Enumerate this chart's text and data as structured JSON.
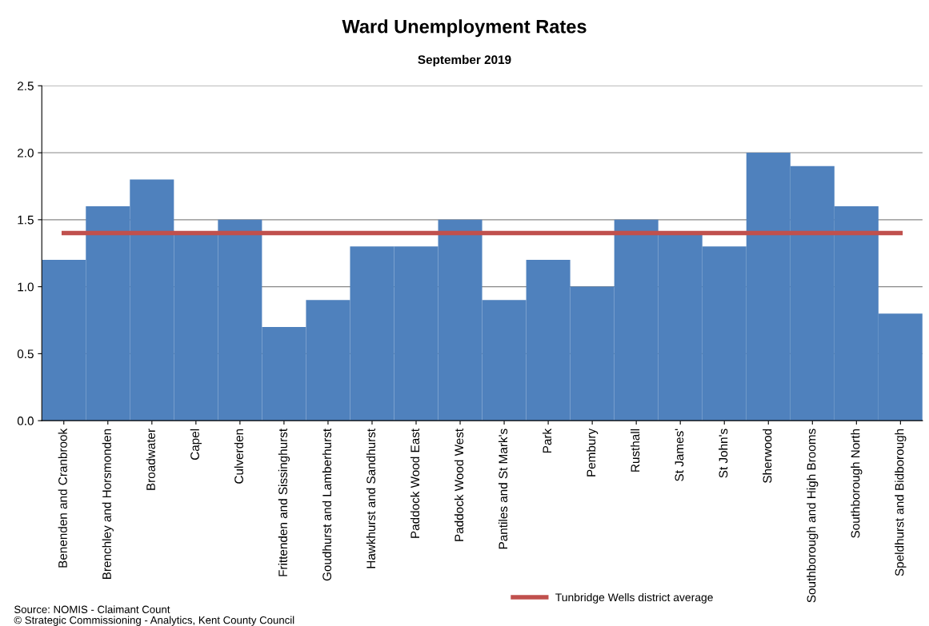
{
  "chart_data": {
    "type": "bar",
    "title": "Ward Unemployment Rates",
    "subtitle": "September 2019",
    "categories": [
      "Benenden and Cranbrook",
      "Brenchley and Horsmonden",
      "Broadwater",
      "Capel",
      "Culverden",
      "Frittenden and Sissinghurst",
      "Goudhurst and Lamberhurst",
      "Hawkhurst and Sandhurst",
      "Paddock Wood East",
      "Paddock Wood West",
      "Pantiles and St Mark's",
      "Park",
      "Pembury",
      "Rusthall",
      "St James'",
      "St John's",
      "Sherwood",
      "Southborough and High Brooms",
      "Southborough North",
      "Speldhurst and Bidborough"
    ],
    "series": [
      {
        "color": "#4f81bd",
        "values": [
          1.2,
          1.6,
          1.8,
          1.4,
          1.5,
          0.7,
          0.9,
          1.3,
          1.3,
          1.5,
          0.9,
          1.2,
          1.0,
          1.5,
          1.4,
          1.3,
          2.0,
          1.9,
          1.6,
          0.8
        ]
      },
      {
        "type": "line",
        "name": "Tunbridge Wells district average",
        "color": "#c0504d",
        "values": [
          1.4,
          1.4,
          1.4,
          1.4,
          1.4,
          1.4,
          1.4,
          1.4,
          1.4,
          1.4,
          1.4,
          1.4,
          1.4,
          1.4,
          1.4,
          1.4,
          1.4,
          1.4,
          1.4,
          1.4
        ]
      }
    ],
    "ylim": [
      0,
      2.5
    ],
    "yticks": [
      {
        "value": 0,
        "label": "0.0"
      },
      {
        "value": 0.5,
        "label": "0.5"
      },
      {
        "value": 1,
        "label": "1.0"
      },
      {
        "value": 1.5,
        "label": "1.5"
      },
      {
        "value": 2,
        "label": "2.0"
      },
      {
        "value": 2.5,
        "label": "2.5"
      }
    ],
    "grid": "y",
    "legend": "bottom",
    "marker": "none",
    "line_style": "solid",
    "annotations": [
      "Source: NOMIS - Claimant Count",
      "© Strategic Commissioning - Analytics, Kent County Council"
    ]
  }
}
